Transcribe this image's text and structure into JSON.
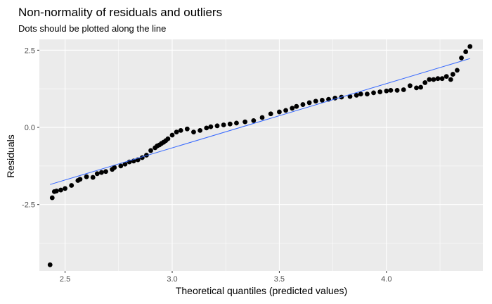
{
  "chart_data": {
    "type": "scatter",
    "title": "Non-normality of residuals and outliers",
    "subtitle": "Dots should be plotted along the line",
    "xlabel": "Theoretical quantiles (predicted values)",
    "ylabel": "Residuals",
    "xlim": [
      2.38,
      4.45
    ],
    "ylim": [
      -4.65,
      2.85
    ],
    "x_ticks": [
      2.5,
      3.0,
      3.5,
      4.0
    ],
    "x_tick_labels": [
      "2.5",
      "3.0",
      "3.5",
      "4.0"
    ],
    "y_ticks": [
      -2.5,
      0.0,
      2.5
    ],
    "y_tick_labels": [
      "-2.5",
      "0.0",
      "2.5"
    ],
    "grid": true,
    "panel_background": "#EBEBEB",
    "point_color": "#000000",
    "line_color": "#3366FF",
    "reference_line": {
      "x": [
        2.43,
        4.39
      ],
      "y": [
        -1.85,
        2.23
      ]
    },
    "points": {
      "x": [
        2.43,
        2.44,
        2.45,
        2.46,
        2.48,
        2.5,
        2.53,
        2.56,
        2.57,
        2.6,
        2.63,
        2.65,
        2.67,
        2.69,
        2.72,
        2.73,
        2.76,
        2.78,
        2.8,
        2.82,
        2.84,
        2.86,
        2.88,
        2.9,
        2.92,
        2.93,
        2.94,
        2.95,
        2.96,
        2.97,
        2.98,
        3.0,
        3.02,
        3.04,
        3.07,
        3.1,
        3.13,
        3.16,
        3.18,
        3.21,
        3.24,
        3.27,
        3.3,
        3.34,
        3.38,
        3.42,
        3.46,
        3.5,
        3.53,
        3.56,
        3.58,
        3.61,
        3.64,
        3.67,
        3.7,
        3.73,
        3.76,
        3.79,
        3.83,
        3.86,
        3.88,
        3.91,
        3.94,
        3.97,
        4.0,
        4.02,
        4.05,
        4.08,
        4.11,
        4.14,
        4.16,
        4.18,
        4.2,
        4.22,
        4.24,
        4.26,
        4.28,
        4.3,
        4.31,
        4.33,
        4.35,
        4.37,
        4.39
      ],
      "y": [
        -4.45,
        -2.28,
        -2.08,
        -2.06,
        -2.03,
        -1.98,
        -1.88,
        -1.72,
        -1.68,
        -1.6,
        -1.62,
        -1.5,
        -1.46,
        -1.43,
        -1.36,
        -1.3,
        -1.25,
        -1.19,
        -1.12,
        -1.09,
        -1.05,
        -0.98,
        -0.9,
        -0.75,
        -0.66,
        -0.6,
        -0.57,
        -0.52,
        -0.48,
        -0.43,
        -0.37,
        -0.25,
        -0.15,
        -0.1,
        -0.05,
        -0.15,
        -0.1,
        -0.02,
        0.02,
        0.05,
        0.08,
        0.11,
        0.14,
        0.18,
        0.22,
        0.32,
        0.44,
        0.5,
        0.55,
        0.62,
        0.68,
        0.74,
        0.8,
        0.85,
        0.88,
        0.91,
        0.95,
        0.98,
        1.0,
        1.04,
        1.08,
        1.08,
        1.12,
        1.15,
        1.18,
        1.2,
        1.2,
        1.22,
        1.35,
        1.28,
        1.3,
        1.45,
        1.55,
        1.55,
        1.58,
        1.58,
        1.65,
        1.55,
        1.72,
        1.85,
        2.25,
        2.45,
        2.62
      ]
    }
  }
}
